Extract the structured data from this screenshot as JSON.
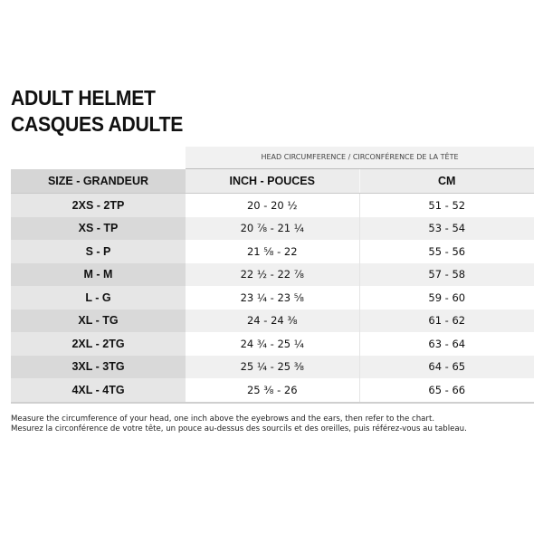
{
  "title": {
    "line1": "ADULT HELMET",
    "line2": "CASQUES ADULTE"
  },
  "table": {
    "group_header": "HEAD CIRCUMFERENCE / CIRCONFÉRENCE DE LA TÊTE",
    "columns": [
      "SIZE - GRANDEUR",
      "INCH - POUCES",
      "CM"
    ],
    "rows": [
      [
        "2XS - 2TP",
        "20 - 20 ½",
        "51 - 52"
      ],
      [
        "XS - TP",
        "20 ⅞ - 21 ¼",
        "53 - 54"
      ],
      [
        "S - P",
        "21 ⅝ - 22",
        "55 - 56"
      ],
      [
        "M - M",
        "22 ½ - 22 ⅞",
        "57 - 58"
      ],
      [
        "L - G",
        "23 ¼ - 23 ⅝",
        "59 - 60"
      ],
      [
        "XL - TG",
        "24 - 24 ⅜",
        "61 - 62"
      ],
      [
        "2XL - 2TG",
        "24 ¾ - 25 ¼",
        "63 - 64"
      ],
      [
        "3XL - 3TG",
        "25 ¼ - 25 ⅜",
        "64 - 65"
      ],
      [
        "4XL - 4TG",
        "25 ⅜ - 26",
        "65 - 66"
      ]
    ]
  },
  "notes": {
    "en": "Measure the circumference of your head, one inch above the eyebrows and the ears, then refer to the chart.",
    "fr": "Mesurez la circonférence de votre tête, un pouce au-dessus des sourcils et des oreilles, puis référez-vous au tableau."
  }
}
